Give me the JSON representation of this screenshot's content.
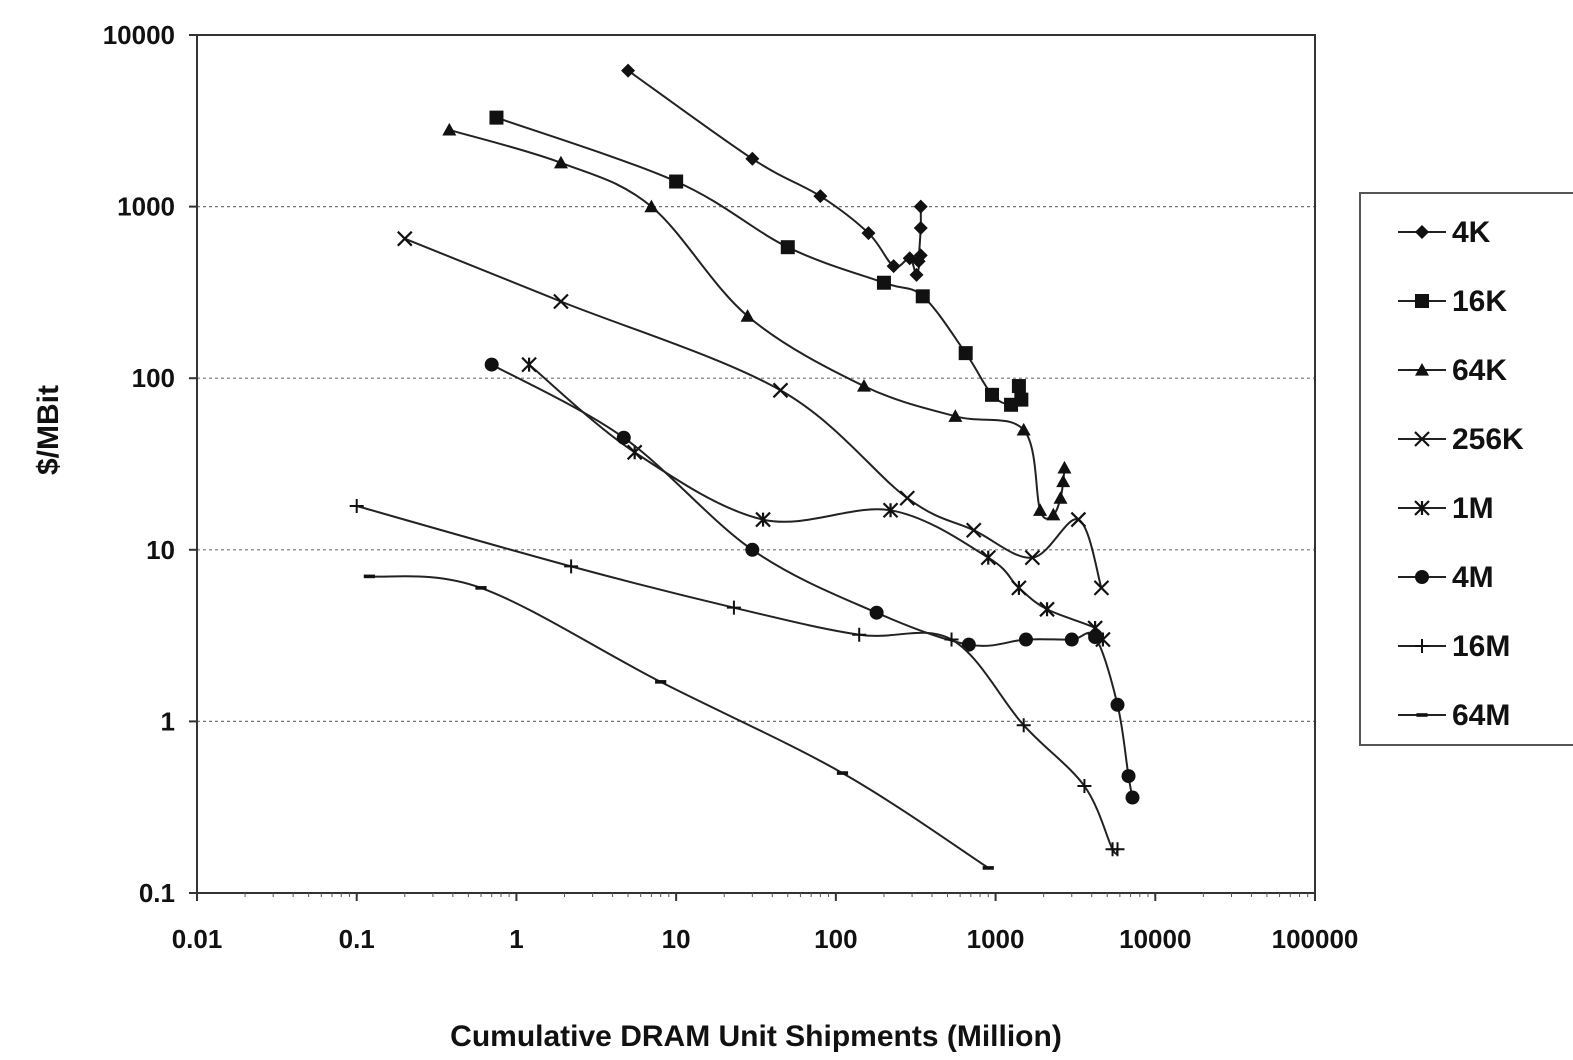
{
  "chart_data": {
    "type": "scatter",
    "title": "",
    "xlabel": "Cumulative DRAM Unit Shipments (Million)",
    "ylabel": "$/MBit",
    "xscale": "log",
    "yscale": "log",
    "xlim": [
      0.01,
      100000
    ],
    "ylim": [
      0.1,
      10000
    ],
    "x_ticks": [
      "0.01",
      "0.1",
      "1",
      "10",
      "100",
      "1000",
      "10000",
      "100000"
    ],
    "y_ticks": [
      "10000",
      "1000",
      "100",
      "10",
      "1",
      "0.1"
    ],
    "grid": "horizontal dotted",
    "legend_position": "right",
    "series": [
      {
        "name": "4K",
        "marker": "diamond",
        "x": [
          5,
          30,
          80,
          160,
          230,
          290,
          320,
          340,
          330,
          340,
          340
        ],
        "y": [
          6200,
          1900,
          1150,
          700,
          450,
          500,
          400,
          520,
          480,
          750,
          1000
        ]
      },
      {
        "name": "16K",
        "marker": "square",
        "x": [
          0.75,
          10,
          50,
          200,
          350,
          650,
          950,
          1250,
          1450,
          1400
        ],
        "y": [
          3300,
          1400,
          580,
          360,
          300,
          140,
          80,
          70,
          75,
          90
        ]
      },
      {
        "name": "64K",
        "marker": "triangle",
        "x": [
          0.38,
          1.9,
          7,
          28,
          150,
          560,
          1500,
          1900,
          2300,
          2550,
          2650,
          2700
        ],
        "y": [
          2800,
          1800,
          1000,
          230,
          90,
          60,
          50,
          17,
          16,
          20,
          25,
          30
        ]
      },
      {
        "name": "256K",
        "marker": "x",
        "x": [
          0.2,
          1.9,
          45,
          280,
          730,
          1700,
          3300,
          4600
        ],
        "y": [
          650,
          280,
          85,
          20,
          13,
          9,
          15,
          6
        ]
      },
      {
        "name": "1M",
        "marker": "asterisk",
        "x": [
          1.2,
          5.5,
          35,
          220,
          900,
          1400,
          2100,
          4200,
          4700
        ],
        "y": [
          120,
          37,
          15,
          17,
          9,
          6,
          4.5,
          3.5,
          3
        ]
      },
      {
        "name": "4M",
        "marker": "circle",
        "x": [
          0.7,
          4.7,
          30,
          180,
          680,
          1550,
          3000,
          4200,
          5800,
          6800,
          7200
        ],
        "y": [
          120,
          45,
          10,
          4.3,
          2.8,
          3,
          3,
          3.1,
          1.25,
          0.48,
          0.36
        ]
      },
      {
        "name": "16M",
        "marker": "plus",
        "x": [
          0.1,
          2.2,
          23,
          140,
          530,
          1500,
          3600,
          5400,
          5800
        ],
        "y": [
          18,
          8,
          4.6,
          3.2,
          3,
          0.95,
          0.42,
          0.18,
          0.18
        ]
      },
      {
        "name": "64M",
        "marker": "dash",
        "x": [
          0.12,
          0.6,
          8,
          110,
          900
        ],
        "y": [
          7,
          6,
          1.7,
          0.5,
          0.14
        ]
      }
    ]
  }
}
